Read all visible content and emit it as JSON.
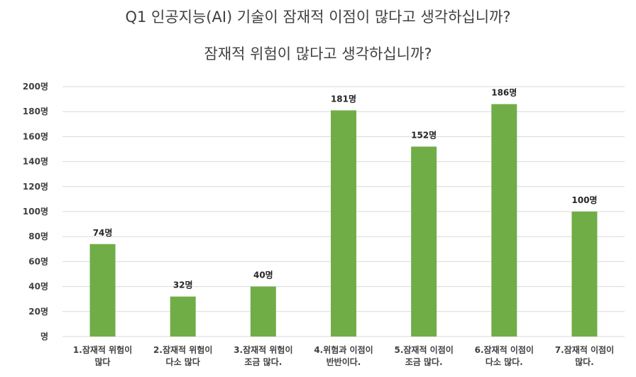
{
  "chart_data": {
    "type": "bar",
    "title": [
      "Q1 인공지능(AI) 기술이 잠재적 이점이 많다고 생각하십니까?",
      "잠재적 위험이 많다고 생각하십니까?"
    ],
    "xlabel": "",
    "ylabel": "",
    "categories": [
      [
        "1.잠재적 위험이",
        "많다"
      ],
      [
        "2.잠재적 위험이",
        "다소 많다"
      ],
      [
        "3.잠재적 위험이",
        "조금 많다."
      ],
      [
        "4.위험과 이점이",
        "반반이다."
      ],
      [
        "5.잠재적 이점이",
        "조금 많다."
      ],
      [
        "6.잠재적 이점이",
        "다소 많다."
      ],
      [
        "7.잠재적 이점이",
        "많다."
      ]
    ],
    "values": [
      74,
      32,
      40,
      181,
      152,
      186,
      100
    ],
    "data_labels": [
      "74명",
      "32명",
      "40명",
      "181명",
      "152명",
      "186명",
      "100명"
    ],
    "ylim": [
      0,
      200
    ],
    "yticks": [
      0,
      20,
      40,
      60,
      80,
      100,
      120,
      140,
      160,
      180,
      200
    ],
    "ytick_labels": [
      "명",
      "20명",
      "40명",
      "60명",
      "80명",
      "100명",
      "120명",
      "140명",
      "160명",
      "180명",
      "200명"
    ],
    "grid": true,
    "legend": "none",
    "bar_color": "#70ad47",
    "grid_color": "#d9d9d9"
  }
}
